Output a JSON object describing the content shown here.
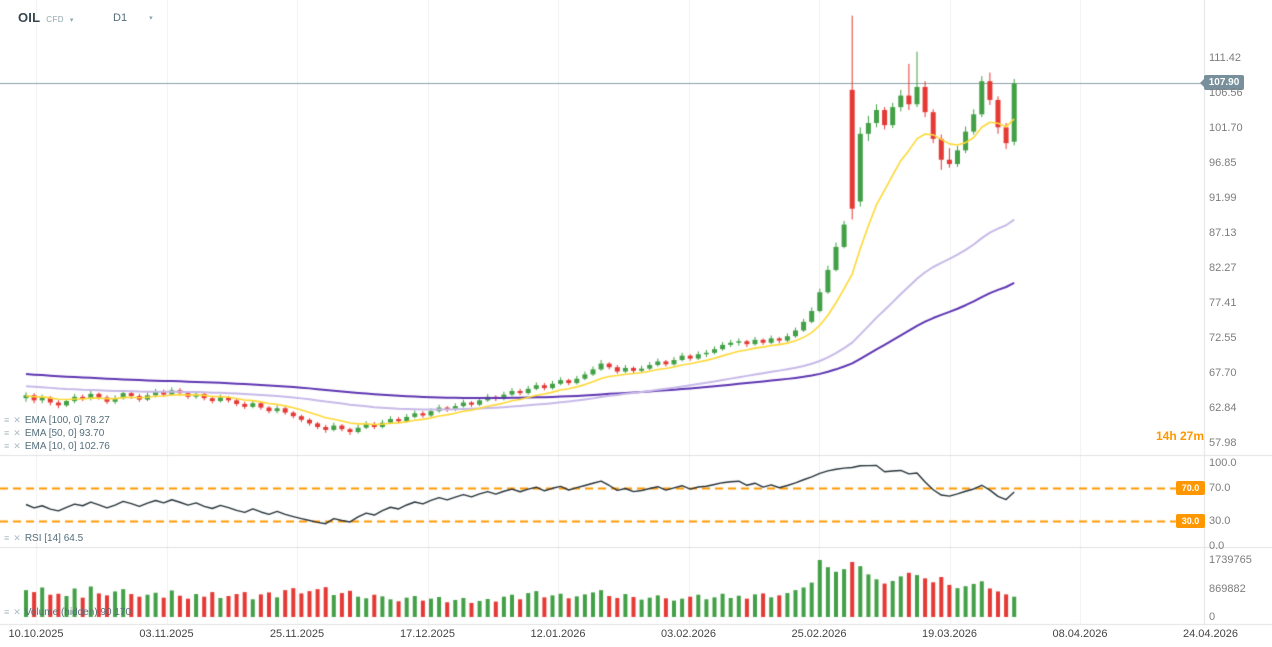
{
  "header": {
    "symbol": "OIL",
    "instrument_type": "CFD",
    "timeframe": "D1"
  },
  "icons": {
    "chevron_down": "▾",
    "drag_handle": "≡",
    "close": "✕"
  },
  "current_price": {
    "label": "107.90",
    "value": 107.9,
    "line_color": "#8aa0ab",
    "badge_color": "#78909c"
  },
  "countdown": "14h 27m",
  "indicators": {
    "emas": [
      {
        "label": "EMA [100, 0] 78.27",
        "period": 100,
        "seed": 67.6,
        "color": "#5e35b1",
        "width": 2
      },
      {
        "label": "EMA [50, 0] 93.70",
        "period": 50,
        "seed": 65.9,
        "color": "#c7b9e8",
        "width": 2
      },
      {
        "label": "EMA [10, 0] 102.76",
        "period": 10,
        "seed": 64.5,
        "color": "#fdd835",
        "width": 1.6
      }
    ],
    "rsi": {
      "label": "RSI [14] 64.5",
      "period": 14,
      "levels": [
        70,
        30
      ],
      "badges": [
        "70.0",
        "30.0"
      ],
      "axis_labels": [
        "100.0",
        "70.0",
        "30.0",
        "0.0"
      ],
      "line_color": "#263238",
      "level_color": "#ff9800"
    },
    "volume": {
      "label": "Volume (hidden) 90 170",
      "axis_labels": [
        "1739765",
        "869882",
        "0"
      ],
      "axis_values": [
        1739765,
        869882,
        0
      ]
    }
  },
  "chart_data": {
    "type": "candlestick",
    "symbol": "OIL CFD",
    "timeframe": "D1",
    "y_axis_labels": [
      "111.42",
      "106.56",
      "101.70",
      "96.85",
      "91.99",
      "87.13",
      "82.27",
      "77.41",
      "72.55",
      "67.70",
      "62.84",
      "57.98"
    ],
    "x_labels": [
      "10.10.2025",
      "03.11.2025",
      "25.11.2025",
      "17.12.2025",
      "12.01.2026",
      "03.02.2026",
      "25.02.2026",
      "19.03.2026",
      "08.04.2026",
      "24.04.2026"
    ],
    "colors": {
      "up": "#43a047",
      "down": "#e53935"
    },
    "candles": [
      [
        64.2,
        65.0,
        63.7,
        64.6
      ],
      [
        64.6,
        64.9,
        63.5,
        63.9
      ],
      [
        63.9,
        64.7,
        63.5,
        64.3
      ],
      [
        64.3,
        64.5,
        63.2,
        63.6
      ],
      [
        63.6,
        63.9,
        62.8,
        63.2
      ],
      [
        63.2,
        64.1,
        63.0,
        63.8
      ],
      [
        63.8,
        64.8,
        63.5,
        64.4
      ],
      [
        64.4,
        64.7,
        63.8,
        64.1
      ],
      [
        64.1,
        65.2,
        63.9,
        64.8
      ],
      [
        64.8,
        65.0,
        64.0,
        64.3
      ],
      [
        64.3,
        64.6,
        63.4,
        63.7
      ],
      [
        63.7,
        64.6,
        63.4,
        64.2
      ],
      [
        64.2,
        65.3,
        64.0,
        64.9
      ],
      [
        64.9,
        65.1,
        64.1,
        64.5
      ],
      [
        64.5,
        64.8,
        63.7,
        64.0
      ],
      [
        64.0,
        65.0,
        63.8,
        64.6
      ],
      [
        64.6,
        65.5,
        64.3,
        65.1
      ],
      [
        65.1,
        65.4,
        64.4,
        64.7
      ],
      [
        64.7,
        65.7,
        64.5,
        65.3
      ],
      [
        65.3,
        65.6,
        64.6,
        64.9
      ],
      [
        64.9,
        65.1,
        64.1,
        64.4
      ],
      [
        64.4,
        65.2,
        64.1,
        64.8
      ],
      [
        64.8,
        65.0,
        63.9,
        64.2
      ],
      [
        64.2,
        64.5,
        63.5,
        63.8
      ],
      [
        63.8,
        64.7,
        63.6,
        64.3
      ],
      [
        64.3,
        64.5,
        63.6,
        63.9
      ],
      [
        63.9,
        64.1,
        63.1,
        63.4
      ],
      [
        63.4,
        63.7,
        62.7,
        63.0
      ],
      [
        63.0,
        63.9,
        62.8,
        63.5
      ],
      [
        63.5,
        63.7,
        62.6,
        62.9
      ],
      [
        62.9,
        63.1,
        62.1,
        62.4
      ],
      [
        62.4,
        63.2,
        62.1,
        62.8
      ],
      [
        62.8,
        63.0,
        61.9,
        62.2
      ],
      [
        62.2,
        62.4,
        61.4,
        61.7
      ],
      [
        61.7,
        61.9,
        60.9,
        61.2
      ],
      [
        61.2,
        61.4,
        60.4,
        60.7
      ],
      [
        60.7,
        60.9,
        59.9,
        60.2
      ],
      [
        60.2,
        60.5,
        59.4,
        59.8
      ],
      [
        59.8,
        60.8,
        59.6,
        60.4
      ],
      [
        60.4,
        60.6,
        59.6,
        59.9
      ],
      [
        59.9,
        60.1,
        59.1,
        59.5
      ],
      [
        59.5,
        60.5,
        59.3,
        60.1
      ],
      [
        60.1,
        61.0,
        59.9,
        60.6
      ],
      [
        60.6,
        60.9,
        59.9,
        60.2
      ],
      [
        60.2,
        61.2,
        60.0,
        60.8
      ],
      [
        60.8,
        61.7,
        60.6,
        61.3
      ],
      [
        61.3,
        61.6,
        60.7,
        61.0
      ],
      [
        61.0,
        62.0,
        60.8,
        61.6
      ],
      [
        61.6,
        62.5,
        61.4,
        62.1
      ],
      [
        62.1,
        62.4,
        61.5,
        61.8
      ],
      [
        61.8,
        62.8,
        61.6,
        62.4
      ],
      [
        62.4,
        63.3,
        62.2,
        62.9
      ],
      [
        62.9,
        63.1,
        62.3,
        62.6
      ],
      [
        62.6,
        63.5,
        62.4,
        63.1
      ],
      [
        63.1,
        64.0,
        62.9,
        63.6
      ],
      [
        63.6,
        63.8,
        63.0,
        63.3
      ],
      [
        63.3,
        64.3,
        63.1,
        63.9
      ],
      [
        63.9,
        64.8,
        63.7,
        64.4
      ],
      [
        64.4,
        64.6,
        63.8,
        64.1
      ],
      [
        64.1,
        65.1,
        63.9,
        64.7
      ],
      [
        64.7,
        65.6,
        64.5,
        65.2
      ],
      [
        65.2,
        65.5,
        64.6,
        64.9
      ],
      [
        64.9,
        65.9,
        64.7,
        65.5
      ],
      [
        65.5,
        66.4,
        65.3,
        66.0
      ],
      [
        66.0,
        66.3,
        65.3,
        65.6
      ],
      [
        65.6,
        66.6,
        65.4,
        66.2
      ],
      [
        66.2,
        67.1,
        66.0,
        66.7
      ],
      [
        66.7,
        66.9,
        66.0,
        66.3
      ],
      [
        66.3,
        67.3,
        66.1,
        66.9
      ],
      [
        66.9,
        67.9,
        66.7,
        67.5
      ],
      [
        67.5,
        68.6,
        67.3,
        68.2
      ],
      [
        68.2,
        69.5,
        68.0,
        69.0
      ],
      [
        69.0,
        69.2,
        68.2,
        68.5
      ],
      [
        68.5,
        68.8,
        67.6,
        67.9
      ],
      [
        67.9,
        68.8,
        67.7,
        68.4
      ],
      [
        68.4,
        68.6,
        67.7,
        68.0
      ],
      [
        68.0,
        68.7,
        67.8,
        68.3
      ],
      [
        68.3,
        69.2,
        68.1,
        68.8
      ],
      [
        68.8,
        69.7,
        68.6,
        69.3
      ],
      [
        69.3,
        69.5,
        68.6,
        68.9
      ],
      [
        68.9,
        69.9,
        68.7,
        69.5
      ],
      [
        69.5,
        70.5,
        69.3,
        70.1
      ],
      [
        70.1,
        70.3,
        69.4,
        69.7
      ],
      [
        69.7,
        70.7,
        69.5,
        70.3
      ],
      [
        70.3,
        70.9,
        69.9,
        70.5
      ],
      [
        70.5,
        71.4,
        70.3,
        71.0
      ],
      [
        71.0,
        72.0,
        70.8,
        71.6
      ],
      [
        71.6,
        72.3,
        71.3,
        71.9
      ],
      [
        71.9,
        72.5,
        71.5,
        72.1
      ],
      [
        72.1,
        72.3,
        71.3,
        71.7
      ],
      [
        71.7,
        72.7,
        71.5,
        72.3
      ],
      [
        72.3,
        72.5,
        71.6,
        71.9
      ],
      [
        71.9,
        72.9,
        71.7,
        72.5
      ],
      [
        72.5,
        72.7,
        71.8,
        72.2
      ],
      [
        72.2,
        73.2,
        72.0,
        72.8
      ],
      [
        72.8,
        74.0,
        72.6,
        73.6
      ],
      [
        73.6,
        75.2,
        73.4,
        74.8
      ],
      [
        74.8,
        76.8,
        74.6,
        76.3
      ],
      [
        76.3,
        79.4,
        76.1,
        78.9
      ],
      [
        78.9,
        82.6,
        78.7,
        82.0
      ],
      [
        82.0,
        85.8,
        81.8,
        85.2
      ],
      [
        85.2,
        88.8,
        85.0,
        88.3
      ],
      [
        107.0,
        117.3,
        89.0,
        90.5
      ],
      [
        91.5,
        101.8,
        90.8,
        100.9
      ],
      [
        100.9,
        103.4,
        99.9,
        102.4
      ],
      [
        102.4,
        105.0,
        101.8,
        104.2
      ],
      [
        104.2,
        104.6,
        101.5,
        102.1
      ],
      [
        102.1,
        105.2,
        101.7,
        104.6
      ],
      [
        104.6,
        107.0,
        104.0,
        106.2
      ],
      [
        106.2,
        110.6,
        104.2,
        105.0
      ],
      [
        105.0,
        112.3,
        104.6,
        107.4
      ],
      [
        107.4,
        108.2,
        103.2,
        103.9
      ],
      [
        103.9,
        104.3,
        99.6,
        100.2
      ],
      [
        100.2,
        100.8,
        95.9,
        97.3
      ],
      [
        97.3,
        98.9,
        96.2,
        96.7
      ],
      [
        96.7,
        99.2,
        96.3,
        98.6
      ],
      [
        98.6,
        101.9,
        98.2,
        101.2
      ],
      [
        101.2,
        104.3,
        100.8,
        103.6
      ],
      [
        103.6,
        108.9,
        103.2,
        108.2
      ],
      [
        108.2,
        109.4,
        104.9,
        105.6
      ],
      [
        105.6,
        106.1,
        100.9,
        101.8
      ],
      [
        101.8,
        102.4,
        98.8,
        99.6
      ],
      [
        99.8,
        108.5,
        99.3,
        107.9
      ]
    ],
    "volumes": [
      820000,
      760000,
      900000,
      680000,
      710000,
      640000,
      870000,
      590000,
      930000,
      720000,
      660000,
      780000,
      850000,
      700000,
      620000,
      680000,
      740000,
      590000,
      810000,
      650000,
      560000,
      700000,
      620000,
      760000,
      580000,
      640000,
      700000,
      760000,
      540000,
      690000,
      750000,
      600000,
      820000,
      880000,
      720000,
      790000,
      850000,
      910000,
      670000,
      730000,
      800000,
      620000,
      570000,
      680000,
      630000,
      540000,
      480000,
      590000,
      640000,
      500000,
      560000,
      610000,
      450000,
      520000,
      580000,
      430000,
      490000,
      550000,
      470000,
      620000,
      680000,
      540000,
      730000,
      790000,
      600000,
      660000,
      710000,
      570000,
      630000,
      690000,
      750000,
      820000,
      640000,
      580000,
      700000,
      610000,
      530000,
      590000,
      660000,
      570000,
      500000,
      560000,
      620000,
      680000,
      540000,
      600000,
      710000,
      580000,
      650000,
      560000,
      690000,
      720000,
      600000,
      660000,
      730000,
      820000,
      900000,
      1050000,
      1739765,
      1520000,
      1380000,
      1460000,
      1680000,
      1550000,
      1300000,
      1150000,
      1020000,
      1100000,
      1240000,
      1350000,
      1280000,
      1180000,
      1060000,
      1220000,
      980000,
      880000,
      940000,
      1010000,
      1090000,
      870000,
      780000,
      690000,
      620000
    ]
  }
}
